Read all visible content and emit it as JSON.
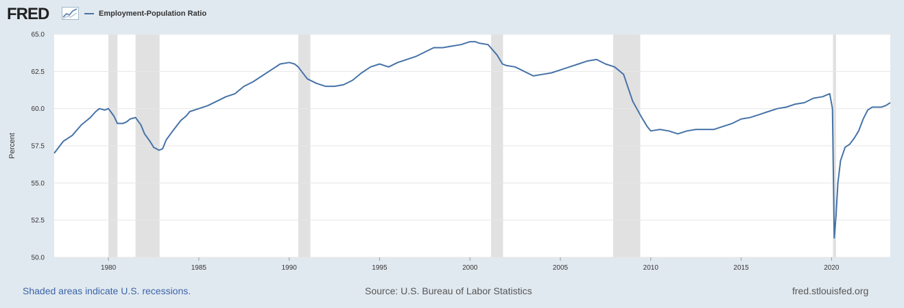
{
  "header": {
    "logo_text": "FRED",
    "logo_icon": "line-graph-icon"
  },
  "footer": {
    "recession_note": "Shaded areas indicate U.S. recessions.",
    "source": "Source: U.S. Bureau of Labor Statistics",
    "site": "fred.stlouisfed.org"
  },
  "colors": {
    "series_line": "#4572a7",
    "recession_shade": "#e1e1e1",
    "background": "#e1e9f0",
    "plot_background": "#ffffff",
    "gridline": "#e6e6e6"
  },
  "chart_data": {
    "type": "line",
    "title": "",
    "xlabel": "",
    "ylabel": "Percent",
    "xlim": [
      1977.0,
      2023.25
    ],
    "ylim": [
      50.0,
      65.0
    ],
    "x_ticks": [
      1980,
      1985,
      1990,
      1995,
      2000,
      2005,
      2010,
      2015,
      2020
    ],
    "x_tick_labels": [
      "1980",
      "1985",
      "1990",
      "1995",
      "2000",
      "2005",
      "2010",
      "2015",
      "2020"
    ],
    "y_ticks": [
      50.0,
      52.5,
      55.0,
      57.5,
      60.0,
      62.5,
      65.0
    ],
    "y_tick_labels": [
      "50.0",
      "52.5",
      "55.0",
      "57.5",
      "60.0",
      "62.5",
      "65.0"
    ],
    "grid": true,
    "legend_position": "top-left",
    "recessions": [
      [
        1980.0,
        1980.5
      ],
      [
        1981.5,
        1982.83
      ],
      [
        1990.5,
        1991.17
      ],
      [
        2001.17,
        2001.83
      ],
      [
        2007.92,
        2009.42
      ],
      [
        2020.08,
        2020.25
      ]
    ],
    "series": [
      {
        "name": "Employment-Population Ratio",
        "x": [
          1977.0,
          1977.5,
          1978.0,
          1978.5,
          1979.0,
          1979.3,
          1979.5,
          1979.8,
          1980.0,
          1980.3,
          1980.5,
          1980.8,
          1981.0,
          1981.2,
          1981.5,
          1981.8,
          1982.0,
          1982.3,
          1982.5,
          1982.8,
          1983.0,
          1983.2,
          1983.5,
          1984.0,
          1984.3,
          1984.5,
          1985.0,
          1985.5,
          1986.0,
          1986.5,
          1987.0,
          1987.5,
          1988.0,
          1988.5,
          1989.0,
          1989.5,
          1990.0,
          1990.3,
          1990.5,
          1991.0,
          1991.5,
          1992.0,
          1992.5,
          1993.0,
          1993.5,
          1994.0,
          1994.5,
          1995.0,
          1995.5,
          1996.0,
          1996.5,
          1997.0,
          1997.5,
          1998.0,
          1998.5,
          1999.0,
          1999.5,
          2000.0,
          2000.3,
          2000.5,
          2001.0,
          2001.5,
          2001.8,
          2002.0,
          2002.5,
          2003.0,
          2003.5,
          2004.0,
          2004.5,
          2005.0,
          2005.5,
          2006.0,
          2006.5,
          2007.0,
          2007.5,
          2008.0,
          2008.5,
          2009.0,
          2009.5,
          2009.8,
          2010.0,
          2010.5,
          2011.0,
          2011.5,
          2012.0,
          2012.5,
          2013.0,
          2013.5,
          2014.0,
          2014.5,
          2015.0,
          2015.5,
          2016.0,
          2016.5,
          2017.0,
          2017.5,
          2018.0,
          2018.5,
          2019.0,
          2019.5,
          2019.9,
          2020.05,
          2020.15,
          2020.25,
          2020.35,
          2020.5,
          2020.75,
          2021.0,
          2021.25,
          2021.5,
          2021.75,
          2022.0,
          2022.25,
          2022.5,
          2022.75,
          2023.0,
          2023.25
        ],
        "values": [
          57.0,
          57.8,
          58.2,
          58.9,
          59.4,
          59.8,
          60.0,
          59.9,
          60.0,
          59.5,
          59.0,
          59.0,
          59.1,
          59.3,
          59.4,
          58.9,
          58.3,
          57.8,
          57.4,
          57.2,
          57.3,
          57.9,
          58.4,
          59.2,
          59.5,
          59.8,
          60.0,
          60.2,
          60.5,
          60.8,
          61.0,
          61.5,
          61.8,
          62.2,
          62.6,
          63.0,
          63.1,
          63.0,
          62.8,
          62.0,
          61.7,
          61.5,
          61.5,
          61.6,
          61.9,
          62.4,
          62.8,
          63.0,
          62.8,
          63.1,
          63.3,
          63.5,
          63.8,
          64.1,
          64.1,
          64.2,
          64.3,
          64.5,
          64.5,
          64.4,
          64.3,
          63.6,
          63.0,
          62.9,
          62.8,
          62.5,
          62.2,
          62.3,
          62.4,
          62.6,
          62.8,
          63.0,
          63.2,
          63.3,
          63.0,
          62.8,
          62.3,
          60.5,
          59.4,
          58.8,
          58.5,
          58.6,
          58.5,
          58.3,
          58.5,
          58.6,
          58.6,
          58.6,
          58.8,
          59.0,
          59.3,
          59.4,
          59.6,
          59.8,
          60.0,
          60.1,
          60.3,
          60.4,
          60.7,
          60.8,
          61.0,
          60.0,
          51.3,
          52.8,
          55.0,
          56.5,
          57.4,
          57.6,
          58.0,
          58.5,
          59.3,
          59.9,
          60.1,
          60.1,
          60.1,
          60.2,
          60.4
        ]
      }
    ]
  }
}
